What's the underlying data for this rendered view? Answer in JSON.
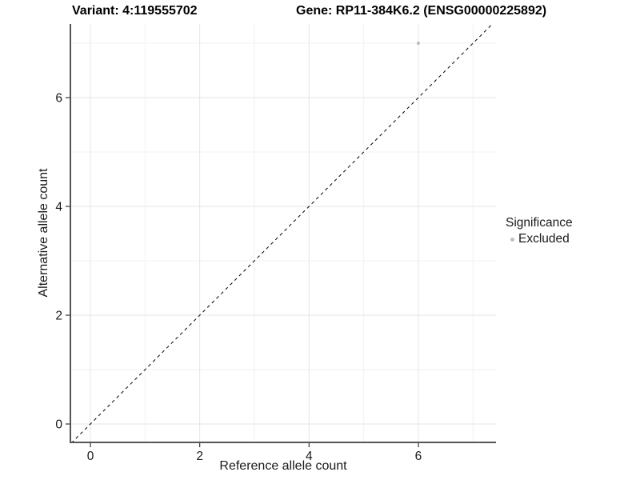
{
  "figure": {
    "title_left": "Variant: 4:119555702",
    "title_right": "Gene: RP11-384K6.2 (ENSG00000225892)"
  },
  "chart_data": {
    "type": "scatter",
    "title": "Variant: 4:119555702",
    "subtitle": "Gene: RP11-384K6.2 (ENSG00000225892)",
    "xlabel": "Reference allele count",
    "ylabel": "Alternative allele count",
    "xlim": [
      -0.35,
      7.4
    ],
    "ylim": [
      -0.35,
      7.35
    ],
    "x_ticks": [
      0,
      2,
      4,
      6
    ],
    "y_ticks": [
      0,
      2,
      4,
      6
    ],
    "x_minor_ticks": [
      1,
      3,
      5,
      7
    ],
    "y_minor_ticks": [
      1,
      3,
      5,
      7
    ],
    "grid": true,
    "series": [
      {
        "name": "Excluded",
        "color": "#bebebe",
        "points": [
          {
            "x": 6,
            "y": 7
          }
        ]
      }
    ],
    "reference_line": {
      "type": "identity",
      "style": "dashed",
      "color": "#000000"
    },
    "legend": {
      "title": "Significance",
      "position": "right",
      "entries": [
        {
          "label": "Excluded",
          "color": "#bebebe"
        }
      ]
    }
  },
  "colors": {
    "background": "#ffffff",
    "grid_major": "#e5e5e5",
    "grid_minor": "#f2f2f2",
    "axis_line": "#555555",
    "tick_mark": "#333333",
    "text": "#1a1a1a",
    "point": "#bebebe",
    "reference_line": "#000000"
  }
}
